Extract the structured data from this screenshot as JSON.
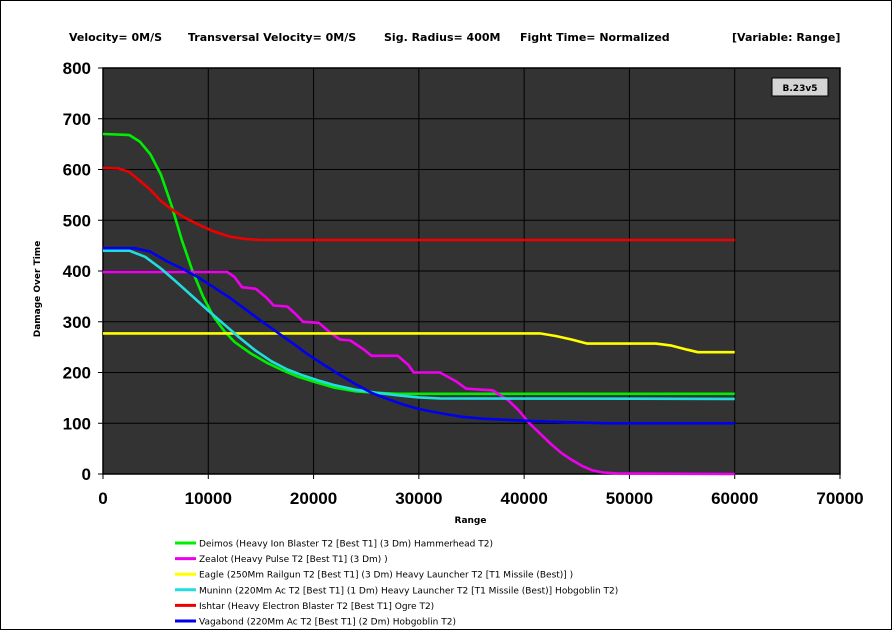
{
  "header": {
    "velocity": "Velocity= 0M/S",
    "transversal": "Transversal Velocity= 0M/S",
    "sig_radius": "Sig. Radius= 400M",
    "fight_time": "Fight Time= Normalized",
    "variable": "[Variable: Range]"
  },
  "badge": "B.23v5",
  "colors": {
    "plot_background": "#333333",
    "grid": "#000000"
  },
  "chart_data": {
    "type": "line",
    "xlabel": "Range",
    "ylabel": "Damage Over Time",
    "xlim": [
      0,
      70000
    ],
    "ylim": [
      0,
      800
    ],
    "x_ticks": [
      0,
      10000,
      20000,
      30000,
      40000,
      50000,
      60000,
      70000
    ],
    "y_ticks": [
      0,
      100,
      200,
      300,
      400,
      500,
      600,
      700,
      800
    ],
    "x_tick_labels": [
      "0",
      "10000",
      "20000",
      "30000",
      "40000",
      "50000",
      "60000",
      "70000"
    ],
    "y_tick_labels": [
      "0",
      "100",
      "200",
      "300",
      "400",
      "500",
      "600",
      "700",
      "800"
    ],
    "grid": true,
    "legend_position": "bottom",
    "series": [
      {
        "name": "Deimos (Heavy Ion Blaster T2 [Best T1] (3 Dm) Hammerhead T2)",
        "color": "#00ee00",
        "points": [
          [
            0,
            670
          ],
          [
            2500,
            668
          ],
          [
            3500,
            655
          ],
          [
            4500,
            630
          ],
          [
            5500,
            590
          ],
          [
            6500,
            530
          ],
          [
            7500,
            460
          ],
          [
            8500,
            400
          ],
          [
            9500,
            350
          ],
          [
            10500,
            310
          ],
          [
            11500,
            282
          ],
          [
            12500,
            260
          ],
          [
            14000,
            238
          ],
          [
            15500,
            220
          ],
          [
            17000,
            205
          ],
          [
            18500,
            192
          ],
          [
            20000,
            182
          ],
          [
            22000,
            170
          ],
          [
            24000,
            163
          ],
          [
            26000,
            160
          ],
          [
            28000,
            158
          ],
          [
            30000,
            158
          ],
          [
            60000,
            158
          ]
        ]
      },
      {
        "name": "Zealot (Heavy Pulse T2 [Best T1] (3 Dm) )",
        "color": "#ee00ee",
        "points": [
          [
            0,
            398
          ],
          [
            11800,
            398
          ],
          [
            12500,
            388
          ],
          [
            13200,
            368
          ],
          [
            14500,
            365
          ],
          [
            15500,
            348
          ],
          [
            16200,
            332
          ],
          [
            17500,
            330
          ],
          [
            18300,
            315
          ],
          [
            19000,
            300
          ],
          [
            20500,
            298
          ],
          [
            21500,
            280
          ],
          [
            22500,
            265
          ],
          [
            23500,
            263
          ],
          [
            24800,
            245
          ],
          [
            25500,
            233
          ],
          [
            28000,
            233
          ],
          [
            29000,
            215
          ],
          [
            29500,
            200
          ],
          [
            32000,
            200
          ],
          [
            33500,
            183
          ],
          [
            34500,
            168
          ],
          [
            37000,
            165
          ],
          [
            38500,
            145
          ],
          [
            39500,
            125
          ],
          [
            40500,
            100
          ],
          [
            41500,
            80
          ],
          [
            42500,
            60
          ],
          [
            43500,
            42
          ],
          [
            44500,
            28
          ],
          [
            45500,
            16
          ],
          [
            46500,
            7
          ],
          [
            47500,
            3
          ],
          [
            49000,
            1
          ],
          [
            60000,
            0
          ]
        ]
      },
      {
        "name": "Eagle (250Mm Railgun T2 [Best T1] (3 Dm) Heavy Launcher T2 [T1 Missile (Best)] )",
        "color": "#ffff00",
        "points": [
          [
            0,
            277
          ],
          [
            41500,
            277
          ],
          [
            43000,
            272
          ],
          [
            44500,
            265
          ],
          [
            46000,
            257
          ],
          [
            52500,
            257
          ],
          [
            54000,
            253
          ],
          [
            55500,
            245
          ],
          [
            56500,
            240
          ],
          [
            60000,
            240
          ]
        ]
      },
      {
        "name": "Muninn (220Mm Ac T2 [Best T1] (1 Dm) Heavy Launcher T2 [T1 Missile (Best)] Hobgoblin T2)",
        "color": "#22dddd",
        "points": [
          [
            0,
            440
          ],
          [
            2500,
            440
          ],
          [
            4000,
            428
          ],
          [
            5500,
            405
          ],
          [
            7000,
            378
          ],
          [
            8500,
            350
          ],
          [
            10000,
            322
          ],
          [
            11500,
            295
          ],
          [
            13000,
            268
          ],
          [
            14500,
            243
          ],
          [
            16000,
            222
          ],
          [
            17500,
            206
          ],
          [
            19000,
            194
          ],
          [
            20500,
            184
          ],
          [
            22000,
            175
          ],
          [
            24000,
            166
          ],
          [
            26000,
            160
          ],
          [
            28000,
            155
          ],
          [
            30000,
            151
          ],
          [
            32000,
            149
          ],
          [
            60000,
            148
          ]
        ]
      },
      {
        "name": "Ishtar (Heavy Electron Blaster T2 [Best T1] Ogre T2)",
        "color": "#ee0000",
        "points": [
          [
            0,
            603
          ],
          [
            1500,
            602
          ],
          [
            2500,
            595
          ],
          [
            3500,
            578
          ],
          [
            4500,
            560
          ],
          [
            5500,
            538
          ],
          [
            6500,
            522
          ],
          [
            7500,
            508
          ],
          [
            9000,
            492
          ],
          [
            10500,
            478
          ],
          [
            12000,
            468
          ],
          [
            13500,
            463
          ],
          [
            15000,
            461
          ],
          [
            60000,
            461
          ]
        ]
      },
      {
        "name": "Vagabond (220Mm Ac T2 [Best T1] (2 Dm) Hobgoblin T2)",
        "color": "#0000ee",
        "points": [
          [
            0,
            445
          ],
          [
            3000,
            445
          ],
          [
            4500,
            438
          ],
          [
            6000,
            420
          ],
          [
            7500,
            405
          ],
          [
            9000,
            388
          ],
          [
            10500,
            368
          ],
          [
            12000,
            348
          ],
          [
            13500,
            325
          ],
          [
            15000,
            302
          ],
          [
            16500,
            280
          ],
          [
            18000,
            258
          ],
          [
            19500,
            235
          ],
          [
            21000,
            215
          ],
          [
            22500,
            195
          ],
          [
            24000,
            177
          ],
          [
            25500,
            160
          ],
          [
            27000,
            148
          ],
          [
            28500,
            137
          ],
          [
            30000,
            128
          ],
          [
            32000,
            120
          ],
          [
            34000,
            113
          ],
          [
            36000,
            109
          ],
          [
            40000,
            105
          ],
          [
            44000,
            102
          ],
          [
            48000,
            100
          ],
          [
            60000,
            100
          ]
        ]
      }
    ]
  }
}
